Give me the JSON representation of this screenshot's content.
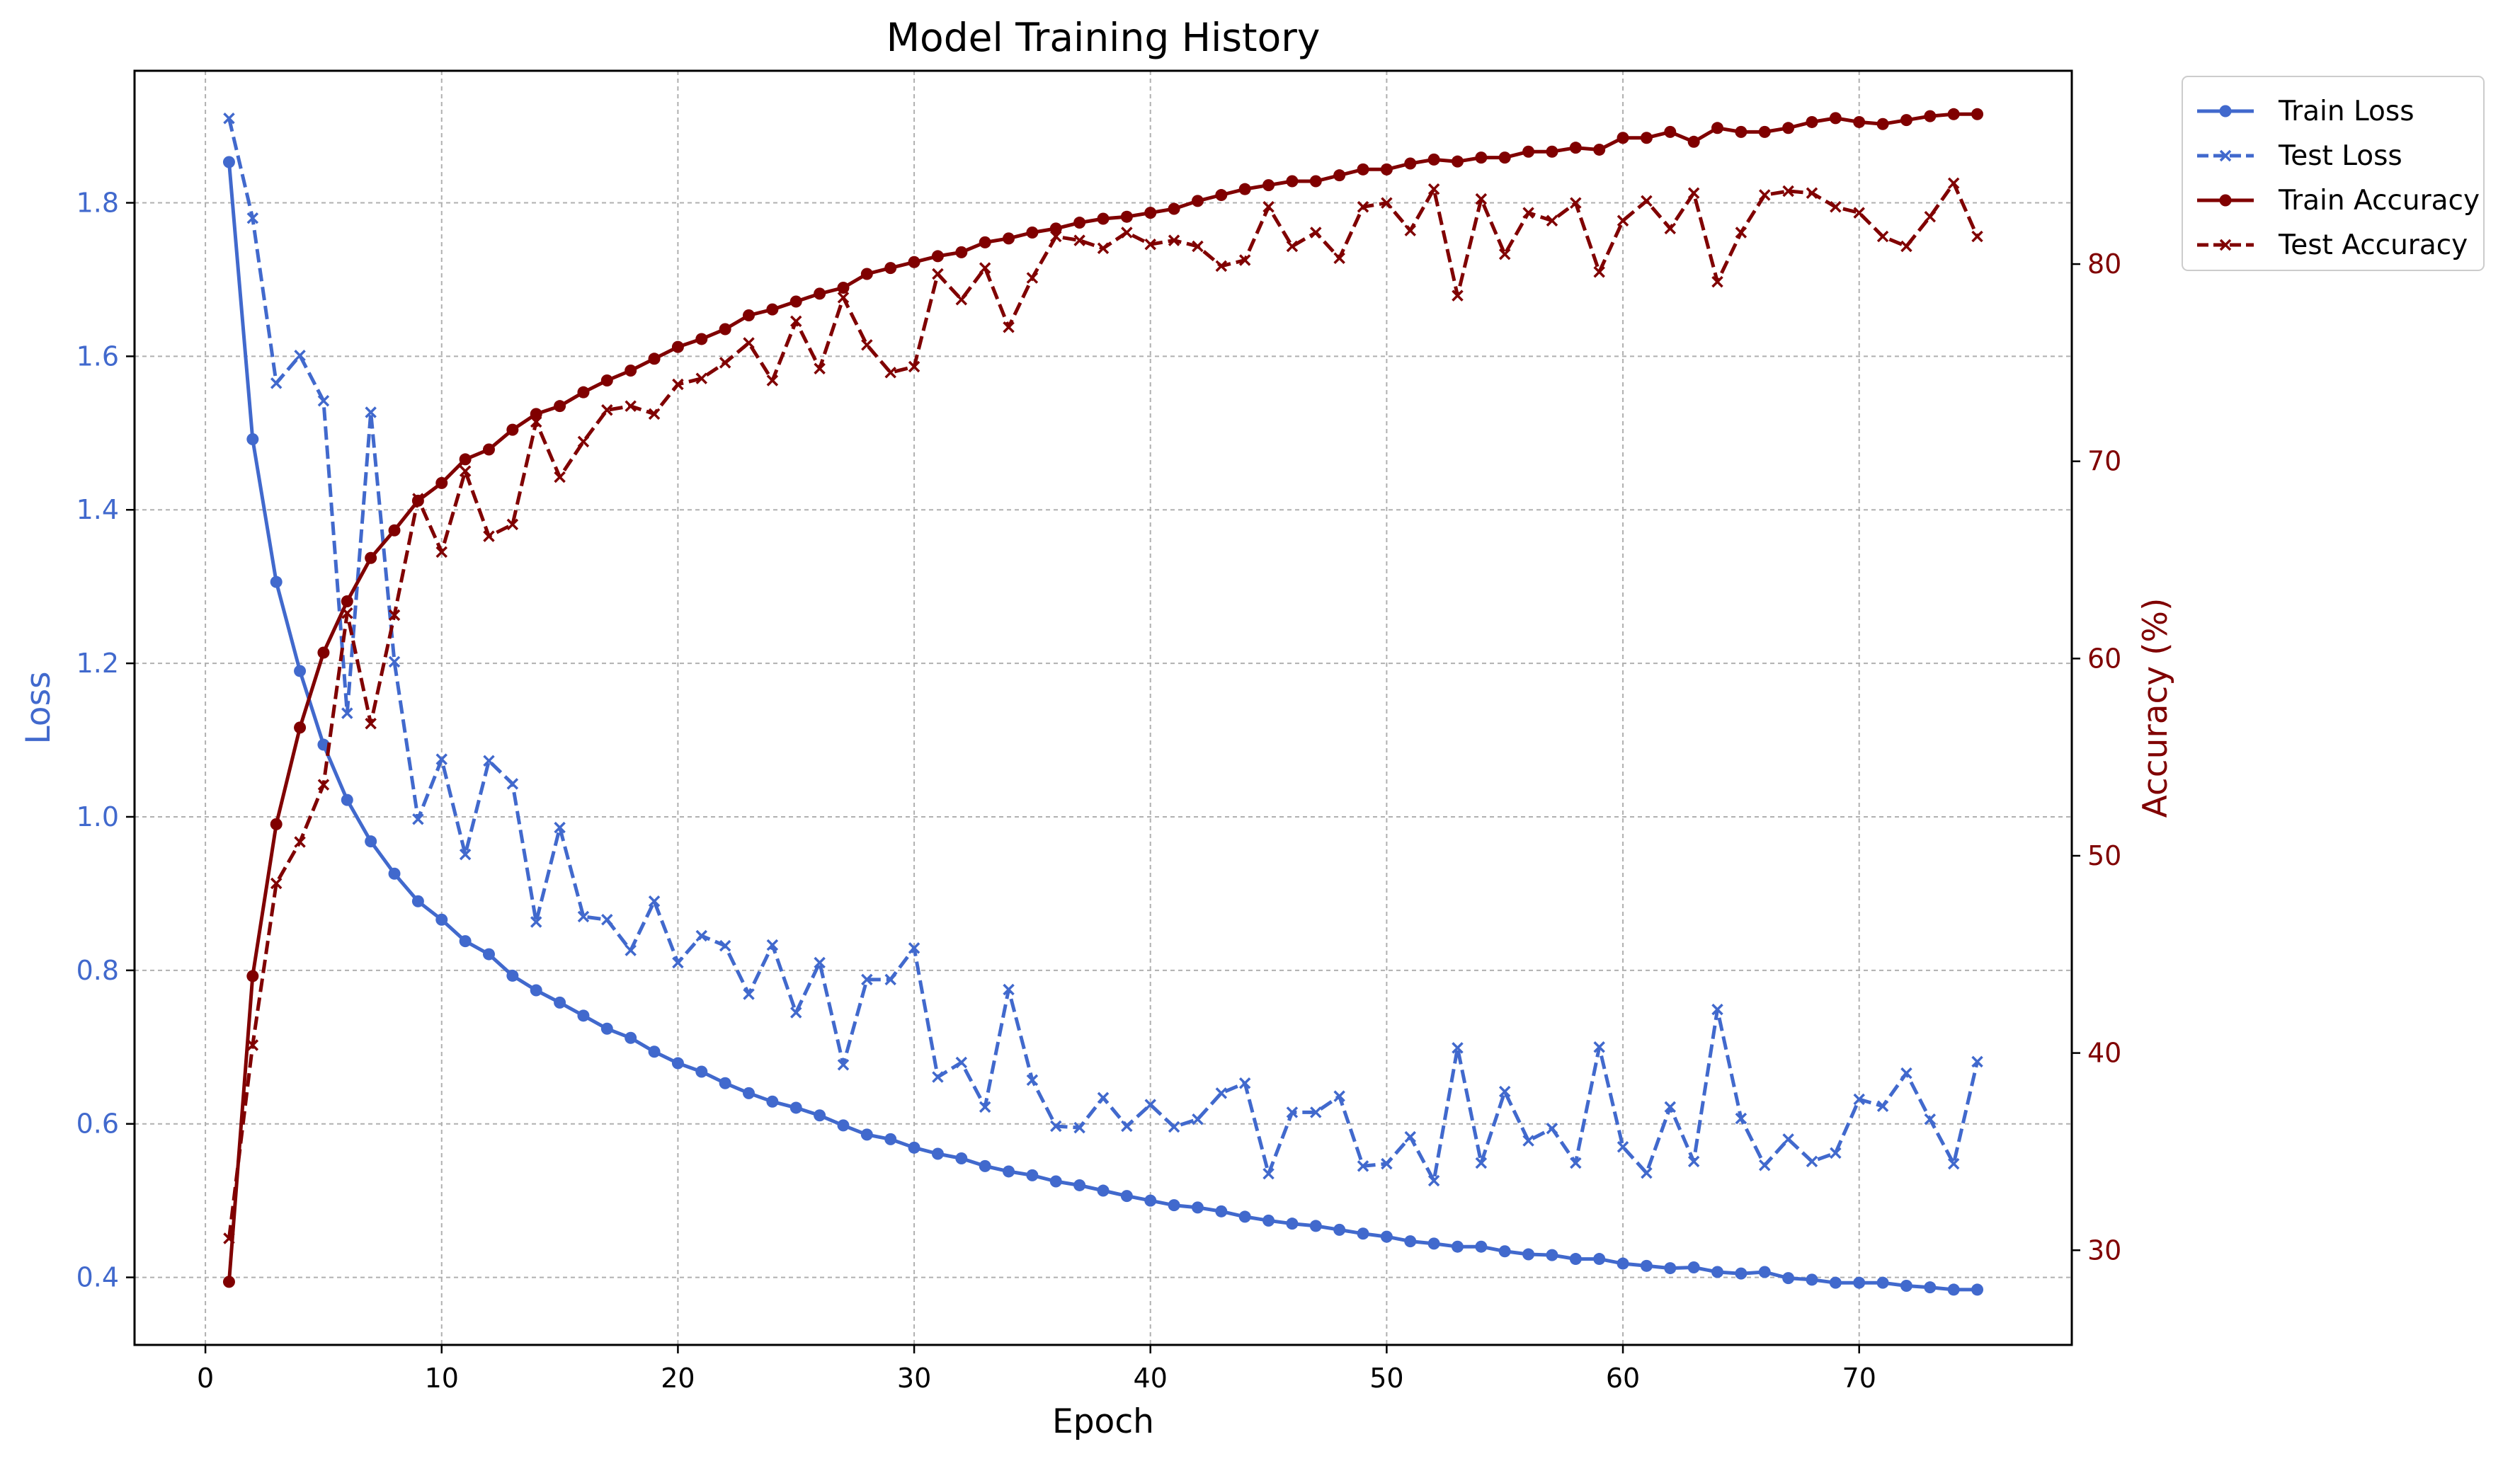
{
  "chart_data": {
    "type": "line",
    "title": "Model Training History",
    "xlabel": "Epoch",
    "ylabel_left": "Loss",
    "ylabel_right": "Accuracy (%)",
    "xlim": [
      -3,
      79
    ],
    "ylim_left": [
      0.312,
      1.972
    ],
    "ylim_right": [
      25.2,
      89.8
    ],
    "xticks": [
      0,
      10,
      20,
      30,
      40,
      50,
      60,
      70
    ],
    "yticks_left": [
      0.4,
      0.6,
      0.8,
      1.0,
      1.2,
      1.4,
      1.6,
      1.8
    ],
    "yticks_left_labels": [
      "0.4",
      "0.6",
      "0.8",
      "1.0",
      "1.2",
      "1.4",
      "1.6",
      "1.8"
    ],
    "yticks_right": [
      30,
      40,
      50,
      60,
      70,
      80
    ],
    "grid": true,
    "legend_position": "outside-top-right",
    "colors": {
      "loss": "#4169CD",
      "accuracy": "#800000"
    },
    "x": [
      1,
      2,
      3,
      4,
      5,
      6,
      7,
      8,
      9,
      10,
      11,
      12,
      13,
      14,
      15,
      16,
      17,
      18,
      19,
      20,
      21,
      22,
      23,
      24,
      25,
      26,
      27,
      28,
      29,
      30,
      31,
      32,
      33,
      34,
      35,
      36,
      37,
      38,
      39,
      40,
      41,
      42,
      43,
      44,
      45,
      46,
      47,
      48,
      49,
      50,
      51,
      52,
      53,
      54,
      55,
      56,
      57,
      58,
      59,
      60,
      61,
      62,
      63,
      64,
      65,
      66,
      67,
      68,
      69,
      70,
      71,
      72,
      73,
      74,
      75
    ],
    "series": [
      {
        "name": "Train Loss",
        "axis": "left",
        "color": "#4169CD",
        "dash": "solid",
        "marker": "circle",
        "values": [
          1.853,
          1.492,
          1.306,
          1.19,
          1.094,
          1.022,
          0.968,
          0.926,
          0.89,
          0.866,
          0.838,
          0.821,
          0.793,
          0.774,
          0.758,
          0.741,
          0.724,
          0.712,
          0.694,
          0.679,
          0.668,
          0.653,
          0.64,
          0.629,
          0.621,
          0.611,
          0.598,
          0.586,
          0.58,
          0.569,
          0.561,
          0.555,
          0.545,
          0.538,
          0.533,
          0.525,
          0.52,
          0.513,
          0.506,
          0.5,
          0.494,
          0.491,
          0.486,
          0.479,
          0.474,
          0.47,
          0.467,
          0.462,
          0.457,
          0.453,
          0.447,
          0.444,
          0.44,
          0.44,
          0.434,
          0.43,
          0.429,
          0.424,
          0.424,
          0.418,
          0.415,
          0.412,
          0.413,
          0.407,
          0.405,
          0.407,
          0.399,
          0.397,
          0.393,
          0.393,
          0.393,
          0.389,
          0.387,
          0.384,
          0.384
        ]
      },
      {
        "name": "Test Loss",
        "axis": "left",
        "color": "#4169CD",
        "dash": "dashed",
        "marker": "x",
        "values": [
          1.91,
          1.78,
          1.565,
          1.601,
          1.542,
          1.135,
          1.527,
          1.202,
          0.997,
          1.075,
          0.951,
          1.073,
          1.043,
          0.863,
          0.986,
          0.87,
          0.866,
          0.826,
          0.89,
          0.81,
          0.845,
          0.832,
          0.769,
          0.833,
          0.745,
          0.81,
          0.677,
          0.788,
          0.788,
          0.829,
          0.661,
          0.68,
          0.622,
          0.775,
          0.657,
          0.597,
          0.595,
          0.634,
          0.597,
          0.625,
          0.596,
          0.606,
          0.64,
          0.653,
          0.535,
          0.615,
          0.615,
          0.636,
          0.545,
          0.548,
          0.583,
          0.526,
          0.699,
          0.549,
          0.642,
          0.578,
          0.594,
          0.549,
          0.7,
          0.57,
          0.536,
          0.622,
          0.551,
          0.749,
          0.607,
          0.546,
          0.58,
          0.551,
          0.562,
          0.632,
          0.623,
          0.666,
          0.606,
          0.548,
          0.681
        ]
      },
      {
        "name": "Train Accuracy",
        "axis": "right",
        "color": "#800000",
        "dash": "solid",
        "marker": "circle",
        "values": [
          28.4,
          43.9,
          51.6,
          56.5,
          60.3,
          62.9,
          65.1,
          66.5,
          68.0,
          68.9,
          70.1,
          70.6,
          71.6,
          72.4,
          72.8,
          73.5,
          74.1,
          74.6,
          75.2,
          75.8,
          76.2,
          76.7,
          77.4,
          77.7,
          78.1,
          78.5,
          78.8,
          79.5,
          79.8,
          80.1,
          80.4,
          80.6,
          81.1,
          81.3,
          81.6,
          81.8,
          82.1,
          82.3,
          82.4,
          82.6,
          82.8,
          83.2,
          83.5,
          83.8,
          84.0,
          84.2,
          84.2,
          84.5,
          84.8,
          84.8,
          85.1,
          85.3,
          85.2,
          85.4,
          85.4,
          85.7,
          85.7,
          85.9,
          85.8,
          86.4,
          86.4,
          86.7,
          86.2,
          86.9,
          86.7,
          86.7,
          86.9,
          87.2,
          87.4,
          87.2,
          87.1,
          87.3,
          87.5,
          87.6,
          87.6
        ]
      },
      {
        "name": "Test Accuracy",
        "axis": "right",
        "color": "#800000",
        "dash": "dashed",
        "marker": "x",
        "values": [
          30.6,
          40.4,
          48.6,
          50.7,
          53.6,
          62.3,
          56.7,
          62.2,
          68.1,
          65.4,
          69.5,
          66.2,
          66.8,
          72.0,
          69.2,
          71.0,
          72.6,
          72.8,
          72.4,
          73.9,
          74.2,
          75.0,
          76.0,
          74.1,
          77.1,
          74.7,
          78.3,
          75.9,
          74.5,
          74.8,
          79.5,
          78.2,
          79.8,
          76.8,
          79.3,
          81.4,
          81.2,
          80.8,
          81.6,
          81.0,
          81.2,
          80.9,
          79.9,
          80.2,
          82.9,
          80.9,
          81.6,
          80.3,
          82.9,
          83.1,
          81.7,
          83.8,
          78.4,
          83.3,
          80.5,
          82.6,
          82.2,
          83.1,
          79.6,
          82.2,
          83.2,
          81.8,
          83.6,
          79.1,
          81.6,
          83.5,
          83.7,
          83.6,
          82.9,
          82.6,
          81.4,
          80.9,
          82.4,
          84.1,
          81.4
        ]
      }
    ]
  }
}
